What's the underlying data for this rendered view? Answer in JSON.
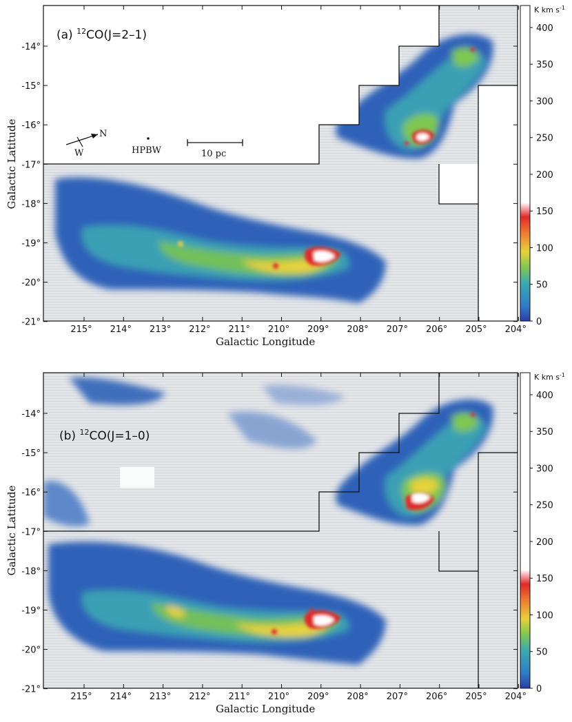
{
  "figure": {
    "panels": [
      {
        "title_prefix": "(a) ",
        "isotope": "12",
        "title_main": "CO(J=2–1)",
        "xlabel": "Galactic Longitude",
        "ylabel": "Galactic Latitude",
        "x_ticks": [
          "215°",
          "214°",
          "213°",
          "212°",
          "211°",
          "210°",
          "209°",
          "208°",
          "207°",
          "206°",
          "205°",
          "204°"
        ],
        "y_ticks": [
          "-14°",
          "-15°",
          "-16°",
          "-17°",
          "-18°",
          "-19°",
          "-20°",
          "-21°"
        ],
        "colorbar_unit": "K km s",
        "colorbar_unit_exp": "-1",
        "colorbar_ticks": [
          "400",
          "350",
          "300",
          "250",
          "200",
          "150",
          "100",
          "50",
          "0"
        ],
        "annotations": {
          "compass_n": "N",
          "compass_w": "W",
          "beam": "HPBW",
          "scalebar": "10 pc"
        }
      },
      {
        "title_prefix": "(b) ",
        "isotope": "12",
        "title_main": "CO(J=1–0)",
        "xlabel": "Galactic Longitude",
        "ylabel": "Galactic Latitude",
        "x_ticks": [
          "215°",
          "214°",
          "213°",
          "212°",
          "211°",
          "210°",
          "209°",
          "208°",
          "207°",
          "206°",
          "205°",
          "204°"
        ],
        "y_ticks": [
          "-14°",
          "-15°",
          "-16°",
          "-17°",
          "-18°",
          "-19°",
          "-20°",
          "-21°"
        ],
        "colorbar_unit": "K km s",
        "colorbar_unit_exp": "-1",
        "colorbar_ticks": [
          "400",
          "350",
          "300",
          "250",
          "200",
          "150",
          "100",
          "50",
          "0"
        ]
      }
    ],
    "colors": {
      "background_map": "#e4e6e8",
      "low": "#2a5fb8",
      "mid": "#3aa6b0",
      "green": "#7ec850",
      "yellow": "#e8d23a",
      "red": "#e02a2a",
      "peak": "#ffffff",
      "frame": "#111111"
    }
  }
}
